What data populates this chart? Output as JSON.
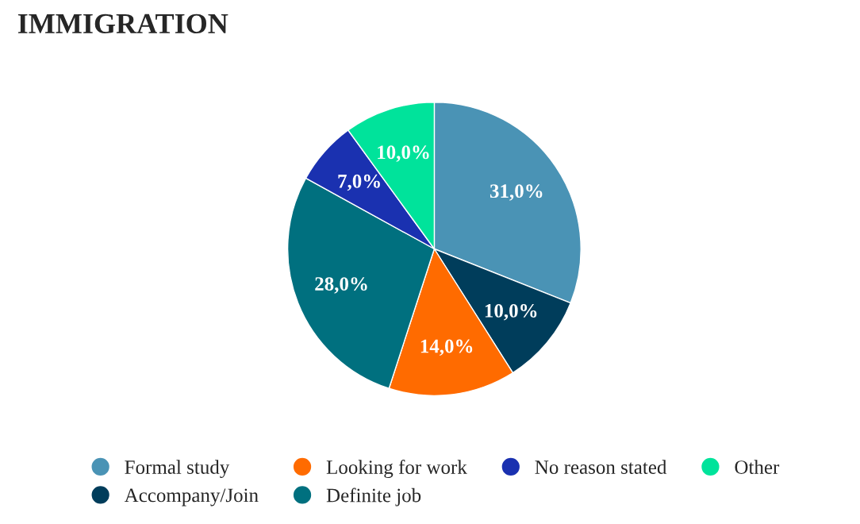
{
  "chart_data": {
    "type": "pie",
    "title": "IMMIGRATION",
    "categories": [
      "Formal study",
      "Accompany/Join",
      "Looking for work",
      "Definite job",
      "No reason stated",
      "Other"
    ],
    "values": [
      31.0,
      10.0,
      14.0,
      28.0,
      7.0,
      10.0
    ],
    "value_labels": [
      "31,0%",
      "10,0%",
      "14,0%",
      "28,0%",
      "7,0%",
      "10,0%"
    ],
    "colors": [
      "#4a93b5",
      "#003d5b",
      "#ff6b00",
      "#00707f",
      "#1a31b0",
      "#00e39b"
    ],
    "legend": "bottom"
  }
}
